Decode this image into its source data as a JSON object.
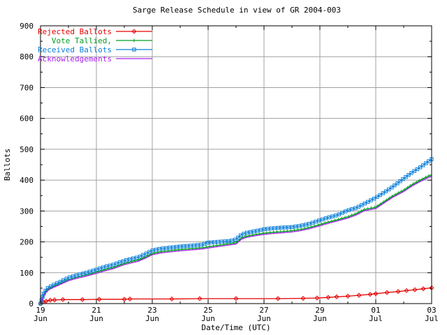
{
  "chart_data": {
    "type": "line",
    "title": "Sarge Release Schedule in view of GR 2004-003",
    "xlabel": "Date/Time (UTC)",
    "ylabel": "Ballots",
    "x_unit": "days since 19 Jun 2004 00:00 UTC",
    "xlim": [
      0,
      14
    ],
    "ylim": [
      0,
      900
    ],
    "grid": true,
    "grid_color": "#a0a0a0",
    "border_color": "#000000",
    "background": "#ffffff",
    "legend_position": "top-left",
    "y_ticks": [
      0,
      100,
      200,
      300,
      400,
      500,
      600,
      700,
      800,
      900
    ],
    "y_minor_ticks": [
      50,
      150,
      250,
      350,
      450,
      550,
      650,
      750,
      850
    ],
    "x_ticks": [
      {
        "day": 0,
        "top": "19",
        "bottom": "Jun"
      },
      {
        "day": 2,
        "top": "21",
        "bottom": "Jun"
      },
      {
        "day": 4,
        "top": "23",
        "bottom": "Jun"
      },
      {
        "day": 6,
        "top": "25",
        "bottom": "Jun"
      },
      {
        "day": 8,
        "top": "27",
        "bottom": "Jun"
      },
      {
        "day": 10,
        "top": "29",
        "bottom": "Jun"
      },
      {
        "day": 12,
        "top": "01",
        "bottom": "Jul"
      },
      {
        "day": 14,
        "top": "03",
        "bottom": "Jul"
      }
    ],
    "x_minor_days": [
      1,
      3,
      5,
      7,
      9,
      11,
      13
    ],
    "series": [
      {
        "name": "Rejected Ballots",
        "color": "#e60000",
        "marker": "diamond",
        "dense_markers": false,
        "points": [
          [
            0,
            0
          ],
          [
            0.1,
            5
          ],
          [
            0.2,
            8
          ],
          [
            0.35,
            11
          ],
          [
            0.5,
            12
          ],
          [
            0.8,
            13
          ],
          [
            1.5,
            13
          ],
          [
            2.1,
            14
          ],
          [
            3,
            14
          ],
          [
            3.2,
            15
          ],
          [
            4.7,
            15
          ],
          [
            5.7,
            16
          ],
          [
            7,
            16
          ],
          [
            8.5,
            16
          ],
          [
            9.4,
            17
          ],
          [
            9.9,
            18
          ],
          [
            10.3,
            20
          ],
          [
            10.6,
            22
          ],
          [
            11,
            24
          ],
          [
            11.4,
            27
          ],
          [
            11.8,
            30
          ],
          [
            12,
            32
          ],
          [
            12.4,
            36
          ],
          [
            12.8,
            39
          ],
          [
            13.1,
            42
          ],
          [
            13.4,
            45
          ],
          [
            13.7,
            48
          ],
          [
            14,
            51
          ]
        ]
      },
      {
        "name": "Vote Tallied,",
        "color": "#00a020",
        "marker": "plus",
        "dense_markers": true,
        "points": [
          [
            0,
            0
          ],
          [
            0.05,
            12
          ],
          [
            0.1,
            25
          ],
          [
            0.2,
            40
          ],
          [
            0.3,
            48
          ],
          [
            0.5,
            57
          ],
          [
            0.7,
            65
          ],
          [
            1,
            78
          ],
          [
            1.3,
            86
          ],
          [
            1.6,
            92
          ],
          [
            2,
            102
          ],
          [
            2.3,
            110
          ],
          [
            2.6,
            117
          ],
          [
            3,
            130
          ],
          [
            3.3,
            137
          ],
          [
            3.5,
            141
          ],
          [
            3.8,
            153
          ],
          [
            4,
            162
          ],
          [
            4.3,
            168
          ],
          [
            4.6,
            171
          ],
          [
            5,
            175
          ],
          [
            5.4,
            178
          ],
          [
            5.8,
            181
          ],
          [
            6,
            184
          ],
          [
            6.3,
            188
          ],
          [
            6.6,
            192
          ],
          [
            7,
            197
          ],
          [
            7.2,
            213
          ],
          [
            7.4,
            219
          ],
          [
            7.7,
            224
          ],
          [
            8,
            228
          ],
          [
            8.3,
            231
          ],
          [
            8.6,
            233
          ],
          [
            9,
            236
          ],
          [
            9.3,
            240
          ],
          [
            9.6,
            246
          ],
          [
            10,
            256
          ],
          [
            10.3,
            264
          ],
          [
            10.6,
            271
          ],
          [
            11,
            281
          ],
          [
            11.3,
            291
          ],
          [
            11.6,
            305
          ],
          [
            12,
            312
          ],
          [
            12.3,
            330
          ],
          [
            12.6,
            348
          ],
          [
            13,
            367
          ],
          [
            13.3,
            385
          ],
          [
            13.6,
            400
          ],
          [
            14,
            418
          ]
        ]
      },
      {
        "name": "Received Ballots",
        "color": "#0b7fd9",
        "marker": "square",
        "dense_markers": true,
        "points": [
          [
            0,
            0
          ],
          [
            0.05,
            15
          ],
          [
            0.1,
            30
          ],
          [
            0.2,
            45
          ],
          [
            0.3,
            53
          ],
          [
            0.5,
            62
          ],
          [
            0.7,
            70
          ],
          [
            1,
            84
          ],
          [
            1.3,
            92
          ],
          [
            1.6,
            99
          ],
          [
            2,
            110
          ],
          [
            2.3,
            119
          ],
          [
            2.6,
            126
          ],
          [
            3,
            139
          ],
          [
            3.3,
            146
          ],
          [
            3.5,
            150
          ],
          [
            3.8,
            163
          ],
          [
            4,
            172
          ],
          [
            4.3,
            178
          ],
          [
            4.6,
            181
          ],
          [
            5,
            185
          ],
          [
            5.4,
            188
          ],
          [
            5.8,
            191
          ],
          [
            5.95,
            197
          ],
          [
            6.2,
            199
          ],
          [
            6.5,
            201
          ],
          [
            6.8,
            203
          ],
          [
            7,
            208
          ],
          [
            7.2,
            224
          ],
          [
            7.4,
            230
          ],
          [
            7.7,
            235
          ],
          [
            8,
            241
          ],
          [
            8.3,
            244
          ],
          [
            8.6,
            246
          ],
          [
            9,
            248
          ],
          [
            9.3,
            252
          ],
          [
            9.6,
            258
          ],
          [
            10,
            270
          ],
          [
            10.3,
            279
          ],
          [
            10.6,
            286
          ],
          [
            11,
            302
          ],
          [
            11.3,
            310
          ],
          [
            11.6,
            324
          ],
          [
            12,
            343
          ],
          [
            12.3,
            360
          ],
          [
            12.6,
            378
          ],
          [
            13,
            405
          ],
          [
            13.3,
            425
          ],
          [
            13.6,
            442
          ],
          [
            14,
            468
          ]
        ]
      },
      {
        "name": "Acknowledgements",
        "color": "#a820f0",
        "marker": "none",
        "dense_markers": false,
        "points": [
          [
            0,
            0
          ],
          [
            0.05,
            10
          ],
          [
            0.1,
            22
          ],
          [
            0.2,
            37
          ],
          [
            0.3,
            45
          ],
          [
            0.5,
            54
          ],
          [
            0.7,
            62
          ],
          [
            1,
            74
          ],
          [
            1.3,
            82
          ],
          [
            1.6,
            88
          ],
          [
            2,
            98
          ],
          [
            2.3,
            106
          ],
          [
            2.6,
            113
          ],
          [
            3,
            126
          ],
          [
            3.3,
            133
          ],
          [
            3.5,
            137
          ],
          [
            3.8,
            149
          ],
          [
            4,
            158
          ],
          [
            4.3,
            164
          ],
          [
            4.6,
            167
          ],
          [
            5,
            171
          ],
          [
            5.4,
            174
          ],
          [
            5.8,
            177
          ],
          [
            6,
            180
          ],
          [
            6.3,
            184
          ],
          [
            6.6,
            188
          ],
          [
            7,
            193
          ],
          [
            7.2,
            209
          ],
          [
            7.4,
            215
          ],
          [
            7.7,
            220
          ],
          [
            8,
            224
          ],
          [
            8.3,
            227
          ],
          [
            8.6,
            229
          ],
          [
            9,
            232
          ],
          [
            9.3,
            236
          ],
          [
            9.6,
            242
          ],
          [
            10,
            252
          ],
          [
            10.3,
            260
          ],
          [
            10.6,
            267
          ],
          [
            11,
            277
          ],
          [
            11.3,
            287
          ],
          [
            11.6,
            301
          ],
          [
            12,
            308
          ],
          [
            12.3,
            326
          ],
          [
            12.6,
            344
          ],
          [
            13,
            363
          ],
          [
            13.3,
            381
          ],
          [
            13.6,
            396
          ],
          [
            14,
            413
          ]
        ]
      }
    ]
  }
}
